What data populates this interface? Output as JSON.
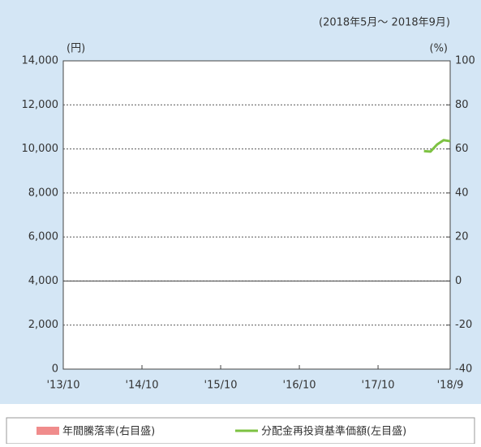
{
  "chart_data": {
    "type": "line",
    "period": "(2018年5月〜 2018年9月)",
    "y_unit": "(円)",
    "y2_unit": "(%)",
    "xlim": [
      "'13/10",
      "'18/9"
    ],
    "xticks": [
      "'13/10",
      "'14/10",
      "'15/10",
      "'16/10",
      "'17/10",
      "'18/9"
    ],
    "ylim": [
      0,
      14000
    ],
    "yticks": [
      0,
      {
        "value": 2000,
        "label": "2,000"
      },
      {
        "value": 4000,
        "label": "4,000"
      },
      {
        "value": 6000,
        "label": "6,000"
      },
      {
        "value": 8000,
        "label": "8,000"
      },
      {
        "value": 10000,
        "label": "10,000"
      },
      {
        "value": 12000,
        "label": "12,000"
      },
      {
        "value": 14000,
        "label": "14,000"
      }
    ],
    "y2lim": [
      -40,
      100
    ],
    "y2ticks": [
      -40,
      -20,
      0,
      20,
      40,
      60,
      80,
      100
    ],
    "grid": true,
    "series": [
      {
        "name": "年間騰落率(右目盛)",
        "color": "#f08c8c",
        "axis": "y2",
        "x": [],
        "values": []
      },
      {
        "name": "分配金再投資基準価額(左目盛)",
        "color": "#7dc242",
        "x": [
          "'18/5",
          "'18/6",
          "'18/7",
          "'18/8",
          "'18/9"
        ],
        "values": [
          9900,
          9880,
          10200,
          10400,
          10350
        ]
      }
    ]
  }
}
